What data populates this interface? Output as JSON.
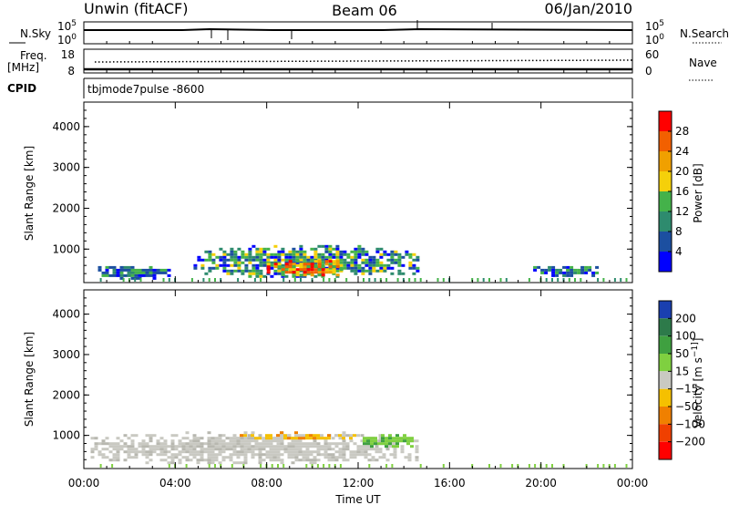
{
  "header": {
    "station": "Unwin (fitACF)",
    "beam": "Beam 06",
    "date": "06/Jan/2010"
  },
  "top_panels": {
    "nsky_label": "N.Sky",
    "nsky_ticks": [
      "10^5",
      "10^0"
    ],
    "nsearch_label": "N.Search",
    "nsearch_ticks": [
      "10^5",
      "10^0"
    ],
    "freq_label": "Freq.",
    "freq_unit": "[MHz]",
    "freq_ticks": [
      "18",
      "8"
    ],
    "nave_label": "Nave",
    "nave_ticks": [
      "60",
      "0"
    ],
    "cpid_label": "CPID",
    "cpid_text": "tbjmode7pulse  -8600"
  },
  "chart_data": [
    {
      "type": "heatmap",
      "name": "power",
      "ylabel": "Slant Range [km]",
      "yticks": [
        "1000",
        "2000",
        "3000",
        "4000"
      ],
      "ylim": [
        180,
        4600
      ],
      "colorbar_label": "Power [dB]",
      "colorbar_ticks": [
        "4",
        "8",
        "12",
        "16",
        "20",
        "24",
        "28"
      ],
      "colorbar_colors": [
        "#0000ff",
        "#1c4fa0",
        "#2e8b6e",
        "#44b24a",
        "#f5d00a",
        "#f0a000",
        "#f26000",
        "#ff0000"
      ],
      "xticks": [
        "00:00",
        "04:00",
        "08:00",
        "12:00",
        "16:00",
        "20:00",
        "00:00"
      ],
      "regions": [
        {
          "t0": 0.3,
          "t1": 3.9,
          "r0": 300,
          "r1": 650,
          "level": "low"
        },
        {
          "t0": 4.8,
          "t1": 14.6,
          "r0": 300,
          "r1": 1100,
          "level": "mid"
        },
        {
          "t0": 8.0,
          "t1": 11.2,
          "r0": 350,
          "r1": 800,
          "level": "high"
        },
        {
          "t0": 19.5,
          "t1": 22.6,
          "r0": 350,
          "r1": 650,
          "level": "low"
        }
      ]
    },
    {
      "type": "heatmap",
      "name": "velocity",
      "ylabel": "Slant Range [km]",
      "yticks": [
        "1000",
        "2000",
        "3000",
        "4000"
      ],
      "ylim": [
        180,
        4600
      ],
      "colorbar_label": "Velocity [m s^-1]",
      "colorbar_ticks": [
        "200",
        "100",
        "50",
        "15",
        "-15",
        "-50",
        "-100",
        "-200"
      ],
      "colorbar_colors": [
        "#1a3fb0",
        "#2d7a4a",
        "#3fa040",
        "#7fd040",
        "#c9c9c2",
        "#f5c000",
        "#f08000",
        "#f04000",
        "#ff0000"
      ],
      "xlabel": "Time UT",
      "xticks": [
        "00:00",
        "04:00",
        "08:00",
        "12:00",
        "16:00",
        "20:00",
        "00:00"
      ],
      "regions": [
        {
          "t0": 0.3,
          "t1": 14.6,
          "r0": 300,
          "r1": 1100,
          "level": "ground"
        },
        {
          "t0": 6.5,
          "t1": 12.0,
          "r0": 900,
          "r1": 1100,
          "level": "away"
        },
        {
          "t0": 12.2,
          "t1": 14.4,
          "r0": 700,
          "r1": 1100,
          "level": "toward"
        }
      ]
    }
  ]
}
